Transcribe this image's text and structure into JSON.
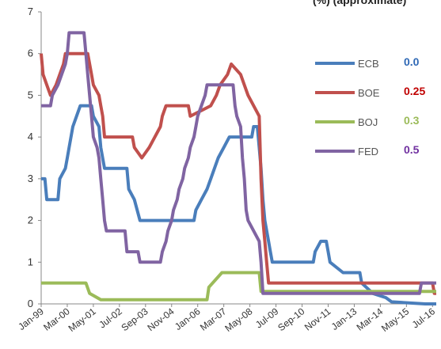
{
  "chart_data": {
    "type": "line",
    "title_fragment": "(%) (approximate)",
    "ylim": [
      0,
      7
    ],
    "y_ticks": [
      "0",
      "1",
      "2",
      "3",
      "4",
      "5",
      "6",
      "7"
    ],
    "x_ticks": [
      "Jan-99",
      "Mar-00",
      "May-01",
      "Jul-02",
      "Sep-03",
      "Nov-04",
      "Jan-06",
      "Mar-07",
      "May-08",
      "Jul-09",
      "Sep-10",
      "Nov-11",
      "Jan-13",
      "Mar-14",
      "May-15",
      "Jul-16"
    ],
    "grid": false,
    "legend_placement": "right",
    "series": [
      {
        "name": "ECB",
        "latest_label": "0.0",
        "color": "#4A7EBB",
        "label_color": "#2E68B5",
        "points": [
          [
            "1999-01",
            3.0
          ],
          [
            "1999-03",
            3.0
          ],
          [
            "1999-04",
            2.5
          ],
          [
            "1999-10",
            2.5
          ],
          [
            "1999-11",
            3.0
          ],
          [
            "2000-02",
            3.25
          ],
          [
            "2000-03",
            3.5
          ],
          [
            "2000-04",
            3.75
          ],
          [
            "2000-06",
            4.25
          ],
          [
            "2000-08",
            4.5
          ],
          [
            "2000-10",
            4.75
          ],
          [
            "2001-04",
            4.75
          ],
          [
            "2001-05",
            4.5
          ],
          [
            "2001-08",
            4.25
          ],
          [
            "2001-09",
            3.75
          ],
          [
            "2001-11",
            3.25
          ],
          [
            "2002-11",
            3.25
          ],
          [
            "2002-12",
            2.75
          ],
          [
            "2003-03",
            2.5
          ],
          [
            "2003-06",
            2.0
          ],
          [
            "2005-11",
            2.0
          ],
          [
            "2005-12",
            2.25
          ],
          [
            "2006-03",
            2.5
          ],
          [
            "2006-06",
            2.75
          ],
          [
            "2006-08",
            3.0
          ],
          [
            "2006-10",
            3.25
          ],
          [
            "2006-12",
            3.5
          ],
          [
            "2007-03",
            3.75
          ],
          [
            "2007-06",
            4.0
          ],
          [
            "2008-06",
            4.0
          ],
          [
            "2008-07",
            4.25
          ],
          [
            "2008-09",
            4.25
          ],
          [
            "2008-10",
            3.75
          ],
          [
            "2008-11",
            3.25
          ],
          [
            "2008-12",
            2.5
          ],
          [
            "2009-01",
            2.0
          ],
          [
            "2009-03",
            1.5
          ],
          [
            "2009-04",
            1.25
          ],
          [
            "2009-05",
            1.0
          ],
          [
            "2011-03",
            1.0
          ],
          [
            "2011-04",
            1.25
          ],
          [
            "2011-07",
            1.5
          ],
          [
            "2011-10",
            1.5
          ],
          [
            "2011-11",
            1.25
          ],
          [
            "2011-12",
            1.0
          ],
          [
            "2012-07",
            0.75
          ],
          [
            "2013-04",
            0.75
          ],
          [
            "2013-05",
            0.5
          ],
          [
            "2013-11",
            0.25
          ],
          [
            "2014-06",
            0.15
          ],
          [
            "2014-09",
            0.05
          ],
          [
            "2016-03",
            0.0
          ],
          [
            "2016-09",
            0.0
          ]
        ]
      },
      {
        "name": "BOE",
        "latest_label": "0.25",
        "color": "#C0504D",
        "label_color": "#C00000",
        "points": [
          [
            "1999-01",
            6.0
          ],
          [
            "1999-02",
            5.5
          ],
          [
            "1999-04",
            5.25
          ],
          [
            "1999-06",
            5.0
          ],
          [
            "1999-09",
            5.25
          ],
          [
            "1999-11",
            5.5
          ],
          [
            "2000-01",
            5.75
          ],
          [
            "2000-02",
            6.0
          ],
          [
            "2001-02",
            6.0
          ],
          [
            "2001-03",
            5.75
          ],
          [
            "2001-04",
            5.5
          ],
          [
            "2001-05",
            5.25
          ],
          [
            "2001-08",
            5.0
          ],
          [
            "2001-09",
            4.75
          ],
          [
            "2001-10",
            4.5
          ],
          [
            "2001-11",
            4.0
          ],
          [
            "2003-02",
            4.0
          ],
          [
            "2003-03",
            3.75
          ],
          [
            "2003-07",
            3.5
          ],
          [
            "2003-11",
            3.75
          ],
          [
            "2004-02",
            4.0
          ],
          [
            "2004-05",
            4.25
          ],
          [
            "2004-06",
            4.5
          ],
          [
            "2004-08",
            4.75
          ],
          [
            "2005-08",
            4.75
          ],
          [
            "2005-09",
            4.5
          ],
          [
            "2006-08",
            4.75
          ],
          [
            "2006-11",
            5.0
          ],
          [
            "2007-01",
            5.25
          ],
          [
            "2007-05",
            5.5
          ],
          [
            "2007-07",
            5.75
          ],
          [
            "2007-12",
            5.5
          ],
          [
            "2008-02",
            5.25
          ],
          [
            "2008-04",
            5.0
          ],
          [
            "2008-10",
            4.5
          ],
          [
            "2008-11",
            3.0
          ],
          [
            "2008-12",
            2.0
          ],
          [
            "2009-01",
            1.5
          ],
          [
            "2009-02",
            1.0
          ],
          [
            "2009-03",
            0.5
          ],
          [
            "2016-07",
            0.5
          ],
          [
            "2016-08",
            0.25
          ],
          [
            "2016-09",
            0.25
          ]
        ]
      },
      {
        "name": "BOJ",
        "latest_label": "0.3",
        "color": "#9BBB59",
        "label_color": "#9BBB59",
        "points": [
          [
            "1999-01",
            0.5
          ],
          [
            "2001-01",
            0.5
          ],
          [
            "2001-03",
            0.25
          ],
          [
            "2001-09",
            0.1
          ],
          [
            "2006-06",
            0.1
          ],
          [
            "2006-07",
            0.4
          ],
          [
            "2007-02",
            0.75
          ],
          [
            "2008-10",
            0.75
          ],
          [
            "2008-11",
            0.3
          ],
          [
            "2016-09",
            0.3
          ]
        ]
      },
      {
        "name": "FED",
        "latest_label": "0.5",
        "color": "#8064A2",
        "label_color": "#7030A0",
        "points": [
          [
            "1999-01",
            4.75
          ],
          [
            "1999-06",
            4.75
          ],
          [
            "1999-07",
            5.0
          ],
          [
            "1999-10",
            5.25
          ],
          [
            "1999-12",
            5.5
          ],
          [
            "2000-02",
            5.75
          ],
          [
            "2000-03",
            6.0
          ],
          [
            "2000-04",
            6.5
          ],
          [
            "2000-12",
            6.5
          ],
          [
            "2001-01",
            6.0
          ],
          [
            "2001-02",
            5.5
          ],
          [
            "2001-03",
            5.0
          ],
          [
            "2001-04",
            4.5
          ],
          [
            "2001-05",
            4.0
          ],
          [
            "2001-07",
            3.75
          ],
          [
            "2001-08",
            3.5
          ],
          [
            "2001-09",
            3.0
          ],
          [
            "2001-10",
            2.5
          ],
          [
            "2001-11",
            2.0
          ],
          [
            "2001-12",
            1.75
          ],
          [
            "2002-10",
            1.75
          ],
          [
            "2002-11",
            1.25
          ],
          [
            "2003-05",
            1.25
          ],
          [
            "2003-06",
            1.0
          ],
          [
            "2004-05",
            1.0
          ],
          [
            "2004-06",
            1.25
          ],
          [
            "2004-08",
            1.5
          ],
          [
            "2004-09",
            1.75
          ],
          [
            "2004-11",
            2.0
          ],
          [
            "2004-12",
            2.25
          ],
          [
            "2005-02",
            2.5
          ],
          [
            "2005-03",
            2.75
          ],
          [
            "2005-05",
            3.0
          ],
          [
            "2005-06",
            3.25
          ],
          [
            "2005-08",
            3.5
          ],
          [
            "2005-09",
            3.75
          ],
          [
            "2005-11",
            4.0
          ],
          [
            "2005-12",
            4.25
          ],
          [
            "2006-01",
            4.5
          ],
          [
            "2006-03",
            4.75
          ],
          [
            "2006-05",
            5.0
          ],
          [
            "2006-06",
            5.25
          ],
          [
            "2007-08",
            5.25
          ],
          [
            "2007-09",
            4.75
          ],
          [
            "2007-10",
            4.5
          ],
          [
            "2007-12",
            4.25
          ],
          [
            "2008-01",
            3.5
          ],
          [
            "2008-02",
            3.0
          ],
          [
            "2008-03",
            2.25
          ],
          [
            "2008-04",
            2.0
          ],
          [
            "2008-10",
            1.5
          ],
          [
            "2008-11",
            1.0
          ],
          [
            "2008-12",
            0.25
          ],
          [
            "2015-12",
            0.25
          ],
          [
            "2016-01",
            0.5
          ],
          [
            "2016-09",
            0.5
          ]
        ]
      }
    ]
  }
}
